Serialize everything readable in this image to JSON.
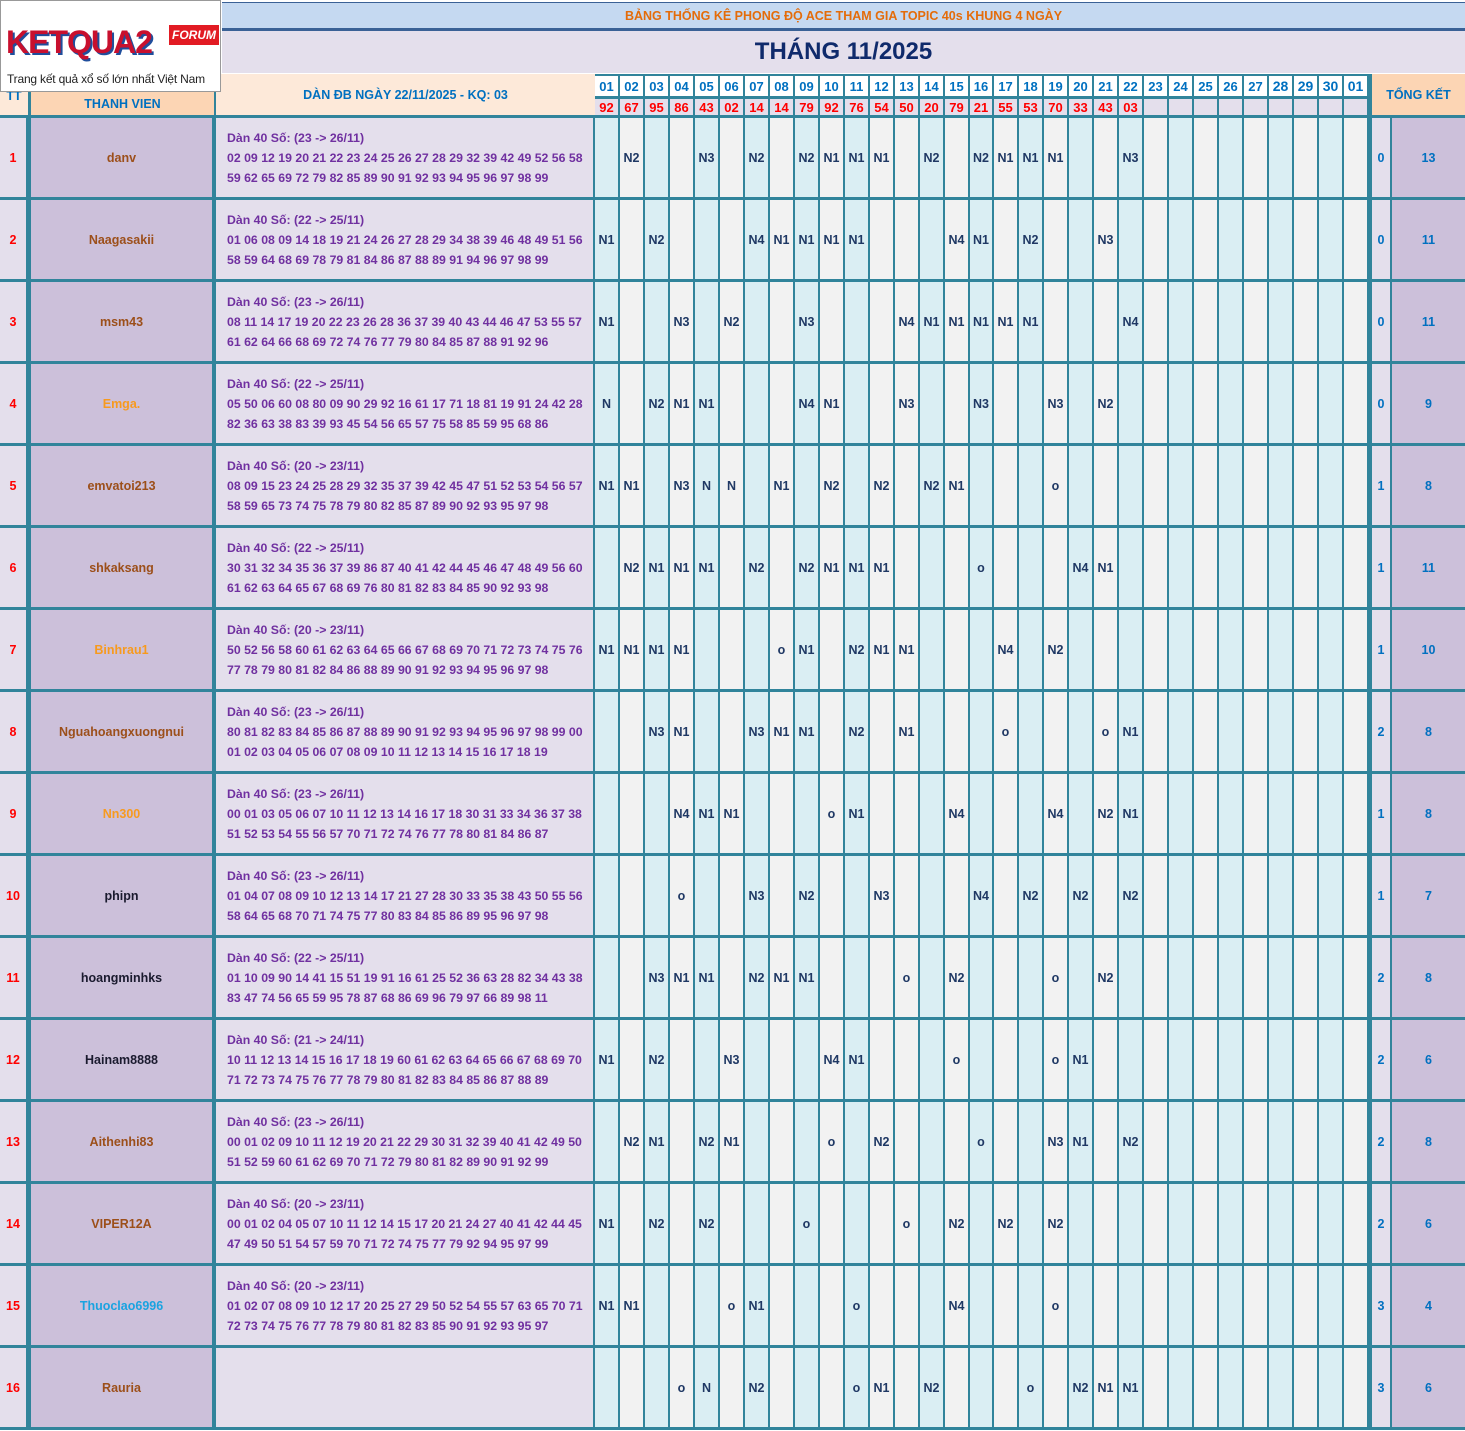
{
  "logo": {
    "brand": "KETQUA2",
    "badge": "FORUM",
    "tagline": "Trang kết quả xổ số lớn nhất Việt Nam"
  },
  "header": {
    "title": "BẢNG THỐNG KÊ PHONG ĐỘ ACE THAM GIA TOPIC 40s KHUNG 4 NGÀY",
    "month": "THÁNG 11/2025",
    "col_tt": "TT",
    "col_member": "THANH VIEN",
    "col_dan": "DÀN ĐB NGÀY 22/11/2025 - KQ: 03",
    "col_total": "TỔNG KẾT",
    "days": [
      "01",
      "02",
      "03",
      "04",
      "05",
      "06",
      "07",
      "08",
      "09",
      "10",
      "11",
      "12",
      "13",
      "14",
      "15",
      "16",
      "17",
      "18",
      "19",
      "20",
      "21",
      "22",
      "23",
      "24",
      "25",
      "26",
      "27",
      "28",
      "29",
      "30",
      "01"
    ],
    "results": [
      "92",
      "67",
      "95",
      "86",
      "43",
      "02",
      "14",
      "14",
      "79",
      "92",
      "76",
      "54",
      "50",
      "20",
      "79",
      "21",
      "55",
      "53",
      "70",
      "33",
      "43",
      "03",
      "",
      "",
      "",
      "",
      "",
      "",
      "",
      "",
      ""
    ]
  },
  "colors": {
    "accent_teal": "#31849b",
    "result_red": "#ff0000",
    "mark_navy": "#1f3864",
    "dan_purple": "#7030a0",
    "summary_blue": "#0070c0"
  },
  "rows": [
    {
      "tt": "1",
      "name": "danv",
      "name_color": "#9c4f1a",
      "dan_title": "Dàn 40 Số: (23 -> 26/11)",
      "dan_line1": "02 09 12 19 20 21 22 23 24 25 26 27 28 29 32 39 42 49 52 56 58",
      "dan_line2": "59 62 65 69 72 79 82 85 89 90 91 92 93 94 95 96 97 98 99",
      "marks": {
        "02": "N2",
        "05": "N3",
        "07": "N2",
        "09": "N2",
        "10": "N1",
        "11": "N1",
        "12": "N1",
        "14": "N2",
        "16": "N2",
        "17": "N1",
        "18": "N1",
        "19": "N1",
        "22": "N3"
      },
      "sub": "0",
      "total": "13"
    },
    {
      "tt": "2",
      "name": "Naagasakii",
      "name_color": "#9c4f1a",
      "dan_title": "Dàn 40 Số: (22 -> 25/11)",
      "dan_line1": "01 06 08 09 14 18 19 21 24 26 27 28 29 34 38 39 46 48 49 51 56",
      "dan_line2": "58 59 64 68 69 78 79 81 84 86 87 88 89 91 94 96 97 98 99",
      "marks": {
        "01": "N1",
        "03": "N2",
        "07": "N4",
        "08": "N1",
        "09": "N1",
        "10": "N1",
        "11": "N1",
        "15": "N4",
        "16": "N1",
        "18": "N2",
        "21": "N3"
      },
      "sub": "0",
      "total": "11"
    },
    {
      "tt": "3",
      "name": "msm43",
      "name_color": "#9c4f1a",
      "dan_title": "Dàn 40 Số: (23 -> 26/11)",
      "dan_line1": "08 11 14 17 19 20 22 23 26 28 36 37 39 40 43 44 46 47 53 55 57",
      "dan_line2": "61 62 64 66 68 69 72 74 76 77 79 80 84 85 87 88 91 92 96",
      "marks": {
        "01": "N1",
        "04": "N3",
        "06": "N2",
        "09": "N3",
        "13": "N4",
        "14": "N1",
        "15": "N1",
        "16": "N1",
        "17": "N1",
        "18": "N1",
        "22": "N4"
      },
      "sub": "0",
      "total": "11"
    },
    {
      "tt": "4",
      "name": "Emga.",
      "name_color": "#f79a1e",
      "dan_title": "Dàn 40 Số: (22 -> 25/11)",
      "dan_line1": "05 50 06 60 08 80 09 90 29 92 16 61 17 71 18 81 19 91 24 42 28",
      "dan_line2": "82 36 63 38 83 39 93 45 54 56 65 57 75 58 85 59 95 68 86",
      "marks": {
        "01": "N",
        "03": "N2",
        "04": "N1",
        "05": "N1",
        "09": "N4",
        "10": "N1",
        "13": "N3",
        "16": "N3",
        "19": "N3",
        "21": "N2"
      },
      "sub": "0",
      "total": "9"
    },
    {
      "tt": "5",
      "name": "emvatoi213",
      "name_color": "#9c4f1a",
      "dan_title": "Dàn 40 Số: (20 -> 23/11)",
      "dan_line1": "08 09 15 23 24 25 28 29 32 35 37 39 42 45 47 51 52 53 54 56 57",
      "dan_line2": "58 59 65 73 74 75 78 79 80 82 85 87 89 90 92 93 95 97 98",
      "marks": {
        "01": "N1",
        "02": "N1",
        "04": "N3",
        "05": "N",
        "06": "N",
        "08": "N1",
        "10": "N2",
        "12": "N2",
        "14": "N2",
        "15": "N1",
        "19": "o"
      },
      "sub": "1",
      "total": "8"
    },
    {
      "tt": "6",
      "name": "shkaksang",
      "name_color": "#9c4f1a",
      "dan_title": "Dàn 40 Số: (22 -> 25/11)",
      "dan_line1": "30 31 32 34 35 36 37 39 86 87 40 41 42 44 45 46 47 48 49 56 60",
      "dan_line2": "61 62 63 64 65 67 68 69 76 80 81 82 83 84 85 90 92 93 98",
      "marks": {
        "02": "N2",
        "03": "N1",
        "04": "N1",
        "05": "N1",
        "07": "N2",
        "09": "N2",
        "10": "N1",
        "11": "N1",
        "12": "N1",
        "16": "o",
        "20": "N4",
        "21": "N1"
      },
      "sub": "1",
      "total": "11"
    },
    {
      "tt": "7",
      "name": "Binhrau1",
      "name_color": "#f79a1e",
      "dan_title": "Dàn 40 Số: (20 -> 23/11)",
      "dan_line1": "50 52 56 58 60 61 62 63 64 65 66 67 68 69 70 71 72 73 74 75 76",
      "dan_line2": "77 78 79 80 81 82 84 86 88 89 90 91 92 93 94 95 96 97 98",
      "marks": {
        "01": "N1",
        "02": "N1",
        "03": "N1",
        "04": "N1",
        "08": "o",
        "09": "N1",
        "11": "N2",
        "12": "N1",
        "13": "N1",
        "17": "N4",
        "19": "N2"
      },
      "sub": "1",
      "total": "10"
    },
    {
      "tt": "8",
      "name": "Nguahoangxuongnui",
      "name_color": "#9c4f1a",
      "dan_title": "Dàn 40 Số: (23 -> 26/11)",
      "dan_line1": "80 81 82 83 84 85 86 87 88 89 90 91 92 93 94 95 96 97 98 99 00",
      "dan_line2": "01 02 03 04 05 06 07 08 09 10 11 12 13 14 15 16 17 18 19",
      "marks": {
        "03": "N3",
        "04": "N1",
        "07": "N3",
        "08": "N1",
        "09": "N1",
        "11": "N2",
        "13": "N1",
        "17": "o",
        "21": "o",
        "22": "N1"
      },
      "sub": "2",
      "total": "8"
    },
    {
      "tt": "9",
      "name": "Nn300",
      "name_color": "#f79a1e",
      "dan_title": "Dàn 40 Số: (23 -> 26/11)",
      "dan_line1": "00 01 03 05 06 07 10 11 12 13 14 16 17 18 30 31 33 34 36 37 38",
      "dan_line2": "51 52 53 54 55 56 57 70 71 72 74 76 77 78 80 81 84 86 87",
      "marks": {
        "04": "N4",
        "05": "N1",
        "06": "N1",
        "10": "o",
        "11": "N1",
        "15": "N4",
        "19": "N4",
        "21": "N2",
        "22": "N1"
      },
      "sub": "1",
      "total": "8"
    },
    {
      "tt": "10",
      "name": "phipn",
      "name_color": "#1a1a2e",
      "dan_title": "Dàn 40 Số: (23 -> 26/11)",
      "dan_line1": "01 04 07 08 09 10 12 13 14 17 21 27 28 30 33 35 38 43 50 55 56",
      "dan_line2": "58 64 65 68 70 71 74 75 77 80 83 84 85 86 89 95 96 97 98",
      "marks": {
        "04": "o",
        "07": "N3",
        "09": "N2",
        "12": "N3",
        "16": "N4",
        "18": "N2",
        "20": "N2",
        "22": "N2"
      },
      "sub": "1",
      "total": "7"
    },
    {
      "tt": "11",
      "name": "hoangminhks",
      "name_color": "#1a1a2e",
      "dan_title": "Dàn 40 Số: (22 -> 25/11)",
      "dan_line1": "01 10 09 90 14 41 15 51 19 91 16 61 25 52 36 63 28 82 34 43 38",
      "dan_line2": "83 47 74 56 65 59 95 78 87 68 86 69 96 79 97 66 89 98 11",
      "marks": {
        "03": "N3",
        "04": "N1",
        "05": "N1",
        "07": "N2",
        "08": "N1",
        "09": "N1",
        "13": "o",
        "15": "N2",
        "19": "o",
        "21": "N2"
      },
      "sub": "2",
      "total": "8"
    },
    {
      "tt": "12",
      "name": "Hainam8888",
      "name_color": "#1a1a2e",
      "dan_title": "Dàn 40 Số: (21 -> 24/11)",
      "dan_line1": "10 11 12 13 14 15 16 17 18 19 60 61 62 63 64 65 66 67 68 69 70",
      "dan_line2": "71 72 73 74 75 76 77 78 79 80 81 82 83 84 85 86 87 88 89",
      "marks": {
        "01": "N1",
        "03": "N2",
        "06": "N3",
        "10": "N4",
        "11": "N1",
        "15": "o",
        "19": "o",
        "20": "N1"
      },
      "sub": "2",
      "total": "6"
    },
    {
      "tt": "13",
      "name": "Aithenhi83",
      "name_color": "#9c4f1a",
      "dan_title": "Dàn 40 Số: (23 -> 26/11)",
      "dan_line1": "00 01 02 09 10 11 12 19 20 21 22 29 30 31 32 39 40 41 42 49 50",
      "dan_line2": "51 52 59 60 61 62 69 70 71 72 79 80 81 82 89 90 91 92 99",
      "marks": {
        "02": "N2",
        "03": "N1",
        "05": "N2",
        "06": "N1",
        "10": "o",
        "12": "N2",
        "16": "o",
        "19": "N3",
        "20": "N1",
        "22": "N2"
      },
      "sub": "2",
      "total": "8"
    },
    {
      "tt": "14",
      "name": "VIPER12A",
      "name_color": "#9c4f1a",
      "dan_title": "Dàn 40 Số: (20 -> 23/11)",
      "dan_line1": "00 01 02 04 05 07 10 11 12 14 15 17 20 21 24 27 40 41 42 44 45",
      "dan_line2": "47 49 50 51 54 57 59 70 71 72 74 75 77 79 92 94 95 97 99",
      "marks": {
        "01": "N1",
        "03": "N2",
        "05": "N2",
        "09": "o",
        "13": "o",
        "15": "N2",
        "17": "N2",
        "19": "N2"
      },
      "sub": "2",
      "total": "6"
    },
    {
      "tt": "15",
      "name": "Thuoclao6996",
      "name_color": "#1aa3e0",
      "dan_title": "Dàn 40 Số: (20 -> 23/11)",
      "dan_line1": "01 02 07 08 09 10 12 17 20 25 27 29 50 52 54 55 57 63 65 70 71",
      "dan_line2": "72 73 74 75 76 77 78 79 80 81 82 83 85 90 91 92 93 95 97",
      "marks": {
        "01": "N1",
        "02": "N1",
        "06": "o",
        "07": "N1",
        "11": "o",
        "15": "N4",
        "19": "o"
      },
      "sub": "3",
      "total": "4"
    },
    {
      "tt": "16",
      "name": "Rauria",
      "name_color": "#9c4f1a",
      "dan_title": "",
      "dan_line1": "",
      "dan_line2": "",
      "marks": {
        "04": "o",
        "05": "N",
        "07": "N2",
        "11": "o",
        "12": "N1",
        "14": "N2",
        "18": "o",
        "20": "N2",
        "21": "N1",
        "22": "N1"
      },
      "sub": "3",
      "total": "6"
    }
  ]
}
